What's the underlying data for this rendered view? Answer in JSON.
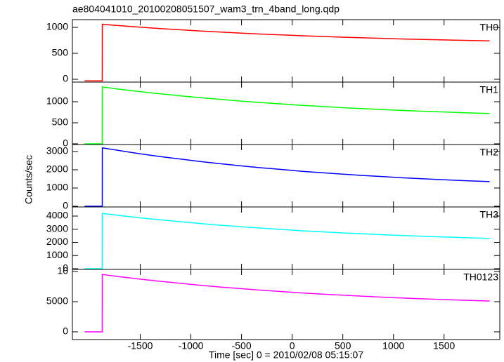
{
  "chart_data": [
    {
      "type": "line",
      "title": "ae804041010_20100208051507_wam3_trn_4band_long.qdp",
      "x": [
        -2050,
        -1875,
        -1874,
        -1700,
        -1500,
        -1300,
        -1100,
        -900,
        -700,
        -500,
        -300,
        -100,
        100,
        300,
        500,
        700,
        900,
        1100,
        1300,
        1500,
        1700,
        1950
      ],
      "series": [
        {
          "name": "TH0",
          "color": "#ff0000",
          "values": [
            -30,
            -30,
            1060,
            1033,
            1004,
            978,
            953,
            930,
            909,
            889,
            871,
            855,
            838,
            824,
            811,
            799,
            787,
            776,
            767,
            758,
            750,
            740
          ]
        }
      ],
      "xlim": [
        -2170,
        2050
      ],
      "ylim": [
        -54,
        1149
      ],
      "yticks": [
        0,
        500,
        1000
      ]
    },
    {
      "type": "line",
      "x": [
        -2050,
        -1875,
        -1874,
        -1700,
        -1500,
        -1300,
        -1100,
        -900,
        -700,
        -500,
        -300,
        -100,
        100,
        300,
        500,
        700,
        900,
        1100,
        1300,
        1500,
        1700,
        1950
      ],
      "series": [
        {
          "name": "TH1",
          "color": "#00ff00",
          "values": [
            0,
            0,
            1350,
            1297,
            1240,
            1188,
            1140,
            1094,
            1053,
            1014,
            978,
            946,
            913,
            886,
            859,
            835,
            813,
            791,
            773,
            756,
            739,
            720
          ]
        }
      ],
      "xlim": [
        -2170,
        2050
      ],
      "ylim": [
        -17,
        1467
      ],
      "yticks": [
        0,
        500,
        1000
      ]
    },
    {
      "type": "line",
      "ylabel": "Counts/sec",
      "x": [
        -2050,
        -1875,
        -1874,
        -1700,
        -1500,
        -1300,
        -1100,
        -900,
        -700,
        -500,
        -300,
        -100,
        100,
        300,
        500,
        700,
        900,
        1100,
        1300,
        1500,
        1700,
        1950
      ],
      "series": [
        {
          "name": "TH2",
          "color": "#0000ff",
          "values": [
            0,
            0,
            3200,
            3045,
            2876,
            2725,
            2584,
            2447,
            2327,
            2212,
            2107,
            2014,
            1916,
            1837,
            1759,
            1689,
            1622,
            1559,
            1505,
            1455,
            1406,
            1350
          ]
        }
      ],
      "xlim": [
        -2170,
        2050
      ],
      "ylim": [
        -38,
        3385
      ],
      "yticks": [
        0,
        1000,
        2000,
        3000
      ]
    },
    {
      "type": "line",
      "x": [
        -2050,
        -1875,
        -1874,
        -1700,
        -1500,
        -1300,
        -1100,
        -900,
        -700,
        -500,
        -300,
        -100,
        100,
        300,
        500,
        700,
        900,
        1100,
        1300,
        1500,
        1700,
        1950
      ],
      "series": [
        {
          "name": "TH3",
          "color": "#00ffff",
          "values": [
            0,
            0,
            4200,
            4040,
            3868,
            3712,
            3567,
            3427,
            3303,
            3185,
            3077,
            2982,
            2881,
            2800,
            2720,
            2648,
            2579,
            2515,
            2460,
            2408,
            2357,
            2300
          ]
        }
      ],
      "xlim": [
        -2170,
        2050
      ],
      "ylim": [
        -53,
        4693
      ],
      "yticks": [
        0,
        1000,
        2000,
        3000,
        4000
      ]
    },
    {
      "type": "line",
      "xlabel": "Time [sec] 0 = 2010/02/08 05:15:07",
      "x": [
        -2050,
        -1875,
        -1874,
        -1700,
        -1500,
        -1300,
        -1100,
        -900,
        -700,
        -500,
        -300,
        -100,
        100,
        300,
        500,
        700,
        900,
        1100,
        1300,
        1500,
        1700,
        1950
      ],
      "series": [
        {
          "name": "TH0123",
          "color": "#ff00ff",
          "values": [
            0,
            0,
            9500,
            9130,
            8730,
            8369,
            8035,
            7709,
            7423,
            7150,
            6900,
            6680,
            6446,
            6257,
            6072,
            5905,
            5747,
            5597,
            5470,
            5351,
            5232,
            5100
          ]
        }
      ],
      "xlim": [
        -2170,
        2050
      ],
      "ylim": [
        -1279,
        10349
      ],
      "yticks": [
        0,
        5000,
        {
          "value": 10000,
          "label": "10"
        }
      ],
      "xticks": [
        -1500,
        -1000,
        -500,
        0,
        500,
        1000,
        1500
      ]
    }
  ]
}
